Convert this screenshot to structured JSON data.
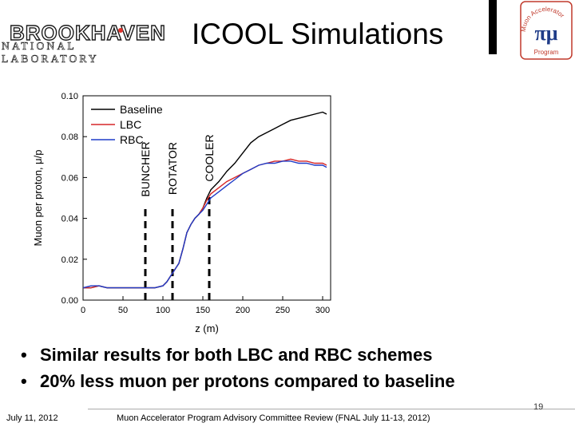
{
  "header": {
    "org_name": "BROOKHAVEN",
    "org_sub": "NATIONAL LABORATORY",
    "title": "ICOOL Simulations",
    "program_logo": {
      "top": "Muon Accelerator",
      "bottom": "Program",
      "symbol": "πμ",
      "colors": {
        "ring": "#c0392b",
        "pi": "#1f3c88"
      }
    }
  },
  "chart_data": {
    "type": "line",
    "xlabel": "z (m)",
    "ylabel": "Muon per proton, μ/p",
    "xlim": [
      0,
      310
    ],
    "ylim": [
      0,
      0.1
    ],
    "x_ticks": [
      "0",
      "50",
      "100",
      "150",
      "200",
      "250",
      "300"
    ],
    "y_ticks": [
      "0.00",
      "0.02",
      "0.04",
      "0.06",
      "0.08",
      "0.10"
    ],
    "legend_position": "top-left",
    "grid": false,
    "section_markers": [
      {
        "label": "BUNCHER",
        "x": 78
      },
      {
        "label": "ROTATOR",
        "x": 112
      },
      {
        "label": "COOLER",
        "x": 158
      }
    ],
    "series": [
      {
        "name": "Baseline",
        "color": "#000000",
        "x": [
          0,
          10,
          20,
          30,
          40,
          50,
          60,
          70,
          80,
          90,
          100,
          105,
          110,
          115,
          120,
          125,
          130,
          135,
          140,
          145,
          150,
          155,
          160,
          170,
          180,
          190,
          200,
          210,
          220,
          230,
          240,
          250,
          260,
          270,
          280,
          290,
          300,
          305
        ],
        "y": [
          0.006,
          0.006,
          0.007,
          0.006,
          0.006,
          0.006,
          0.006,
          0.006,
          0.006,
          0.006,
          0.007,
          0.009,
          0.012,
          0.015,
          0.018,
          0.025,
          0.033,
          0.037,
          0.04,
          0.042,
          0.045,
          0.05,
          0.054,
          0.058,
          0.063,
          0.067,
          0.072,
          0.077,
          0.08,
          0.082,
          0.084,
          0.086,
          0.088,
          0.089,
          0.09,
          0.091,
          0.092,
          0.091
        ]
      },
      {
        "name": "LBC",
        "color": "#d62728",
        "x": [
          0,
          10,
          20,
          30,
          40,
          50,
          60,
          70,
          80,
          90,
          100,
          105,
          110,
          115,
          120,
          125,
          130,
          135,
          140,
          145,
          150,
          155,
          160,
          170,
          180,
          190,
          200,
          210,
          220,
          230,
          240,
          250,
          260,
          270,
          280,
          290,
          300,
          305
        ],
        "y": [
          0.006,
          0.006,
          0.007,
          0.006,
          0.006,
          0.006,
          0.006,
          0.006,
          0.006,
          0.006,
          0.007,
          0.009,
          0.012,
          0.015,
          0.018,
          0.025,
          0.033,
          0.037,
          0.04,
          0.042,
          0.045,
          0.049,
          0.052,
          0.055,
          0.058,
          0.06,
          0.062,
          0.064,
          0.066,
          0.067,
          0.068,
          0.068,
          0.069,
          0.068,
          0.068,
          0.067,
          0.067,
          0.066
        ]
      },
      {
        "name": "RBC",
        "color": "#1f3cc8",
        "x": [
          0,
          10,
          20,
          30,
          40,
          50,
          60,
          70,
          80,
          90,
          100,
          105,
          110,
          115,
          120,
          125,
          130,
          135,
          140,
          145,
          150,
          155,
          160,
          170,
          180,
          190,
          200,
          210,
          220,
          230,
          240,
          250,
          260,
          270,
          280,
          290,
          300,
          305
        ],
        "y": [
          0.006,
          0.007,
          0.007,
          0.006,
          0.006,
          0.006,
          0.006,
          0.006,
          0.006,
          0.006,
          0.007,
          0.009,
          0.012,
          0.015,
          0.018,
          0.025,
          0.033,
          0.037,
          0.04,
          0.042,
          0.044,
          0.047,
          0.05,
          0.053,
          0.056,
          0.059,
          0.062,
          0.064,
          0.066,
          0.067,
          0.067,
          0.068,
          0.068,
          0.067,
          0.067,
          0.066,
          0.066,
          0.065
        ]
      }
    ]
  },
  "bullets": [
    "Similar results for both LBC and RBC schemes",
    "20% less muon per protons compared to baseline"
  ],
  "footer": {
    "date": "July 11, 2012",
    "review": "Muon Accelerator Program Advisory Committee Review (FNAL July 11-13, 2012)",
    "page": "19"
  }
}
